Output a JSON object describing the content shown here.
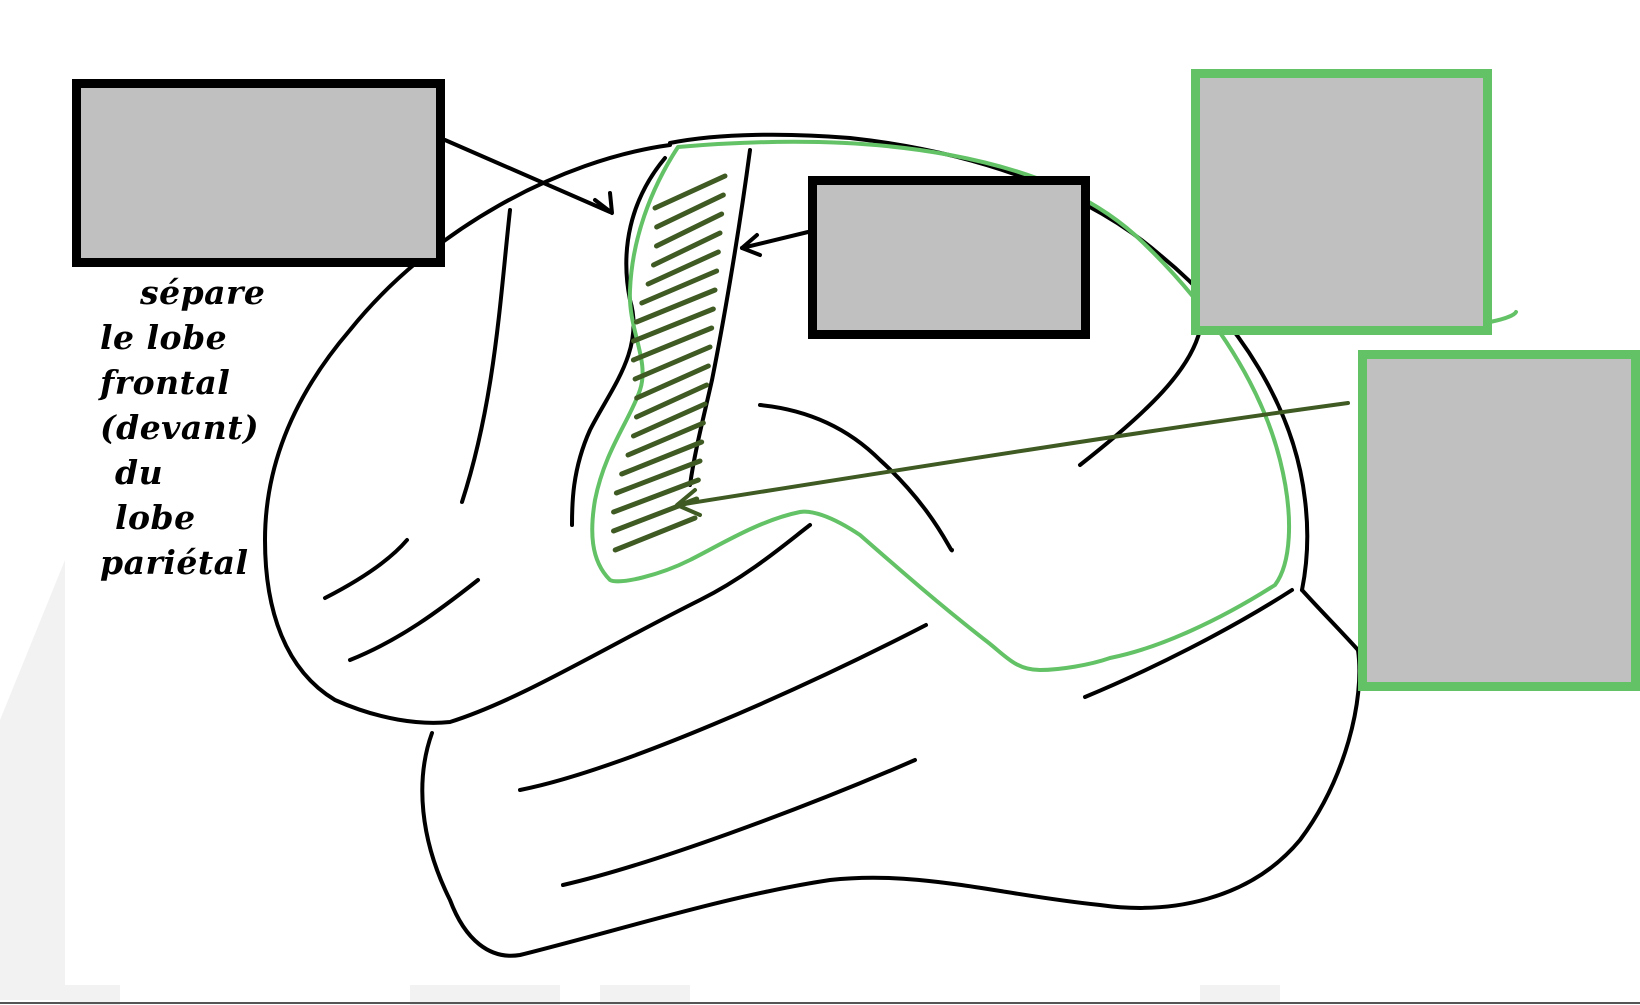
{
  "annotation": {
    "lines": [
      "sépare",
      "le lobe",
      "frontal",
      "(devant)",
      "du",
      "lobe",
      "pariétal"
    ]
  },
  "label_boxes": [
    {
      "border": "black",
      "text": ""
    },
    {
      "border": "black",
      "text": ""
    },
    {
      "border": "green",
      "text": ""
    },
    {
      "border": "green",
      "text": ""
    }
  ],
  "colors": {
    "outline": "#000000",
    "highlight_green": "#63c266",
    "hatch_dark_green": "#3f5a22",
    "box_fill": "#c0c0c0"
  }
}
